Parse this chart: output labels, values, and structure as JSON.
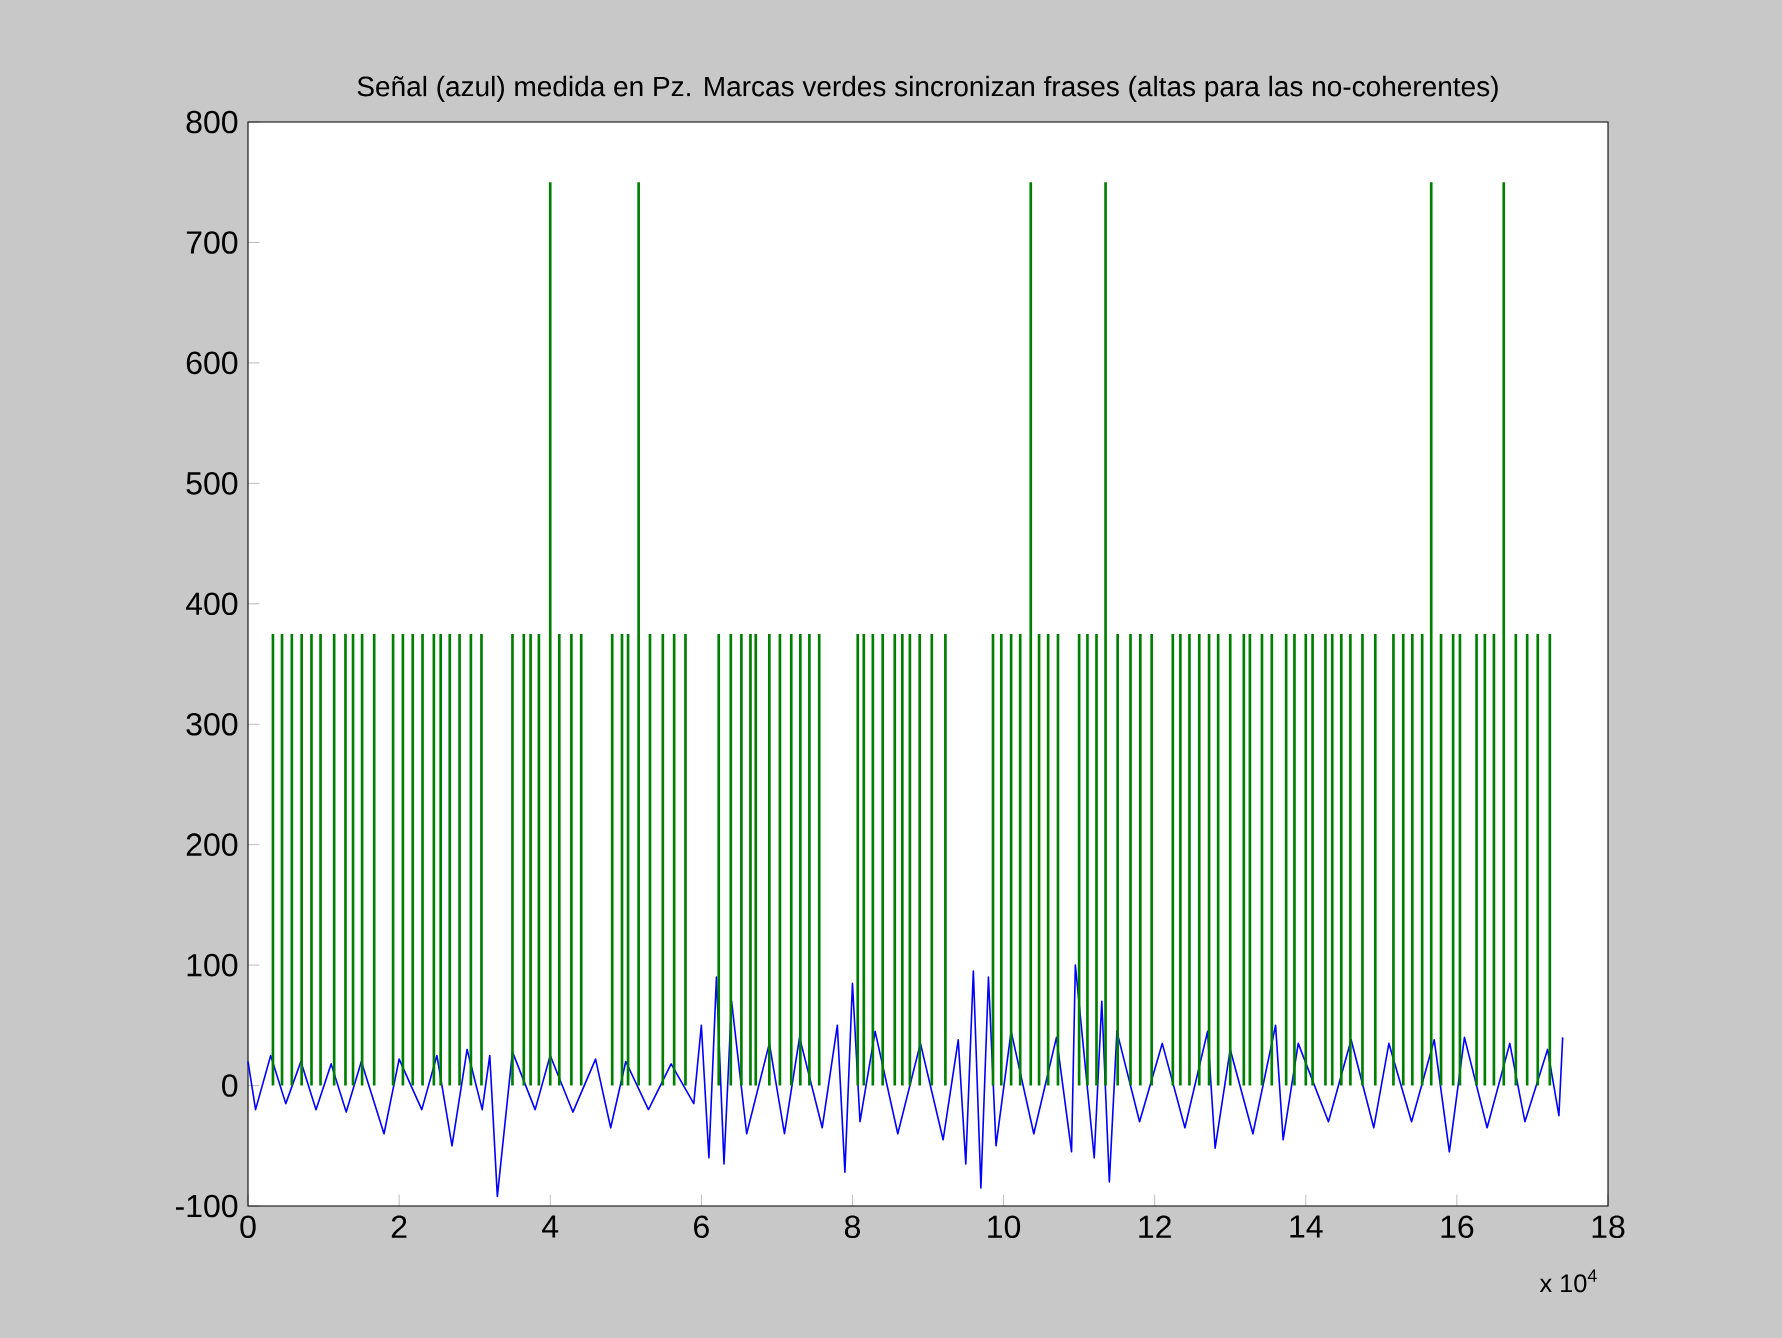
{
  "chart_data": {
    "type": "line",
    "title": "Señal (azul) medida en Pz. Marcas verdes sincronizan frases (altas para las no-coherentes)",
    "xlim": [
      0,
      18
    ],
    "ylim": [
      -100,
      800
    ],
    "xticks": [
      0,
      2,
      4,
      6,
      8,
      10,
      12,
      14,
      16,
      18
    ],
    "yticks": [
      -100,
      0,
      100,
      200,
      300,
      400,
      500,
      600,
      700,
      800
    ],
    "annotations": [
      "x 10$^{4}$"
    ],
    "series": [
      {
        "color": "#0000ff",
        "x": [
          0.0,
          0.1,
          0.3,
          0.5,
          0.7,
          0.9,
          1.1,
          1.3,
          1.5,
          1.8,
          2.0,
          2.3,
          2.5,
          2.7,
          2.9,
          3.1,
          3.2,
          3.3,
          3.5,
          3.8,
          4.0,
          4.3,
          4.6,
          4.8,
          5.0,
          5.3,
          5.6,
          5.9,
          6.0,
          6.1,
          6.2,
          6.3,
          6.4,
          6.6,
          6.9,
          7.1,
          7.3,
          7.6,
          7.8,
          7.9,
          8.0,
          8.1,
          8.3,
          8.6,
          8.9,
          9.2,
          9.4,
          9.5,
          9.6,
          9.7,
          9.8,
          9.9,
          10.1,
          10.4,
          10.7,
          10.9,
          10.95,
          11.2,
          11.3,
          11.4,
          11.5,
          11.8,
          12.1,
          12.4,
          12.7,
          12.8,
          13.0,
          13.3,
          13.6,
          13.7,
          13.9,
          14.3,
          14.6,
          14.9,
          15.1,
          15.4,
          15.7,
          15.9,
          16.1,
          16.4,
          16.7,
          16.9,
          17.2,
          17.35,
          17.4
        ],
        "values": [
          20,
          -20,
          25,
          -15,
          20,
          -20,
          18,
          -22,
          20,
          -40,
          22,
          -20,
          25,
          -50,
          30,
          -20,
          25,
          -92,
          28,
          -20,
          25,
          -22,
          22,
          -35,
          20,
          -20,
          18,
          -15,
          50,
          -60,
          90,
          -65,
          70,
          -40,
          35,
          -40,
          40,
          -35,
          50,
          -72,
          85,
          -30,
          45,
          -40,
          35,
          -45,
          38,
          -65,
          95,
          -85,
          90,
          -50,
          45,
          -40,
          40,
          -55,
          100,
          -60,
          70,
          -80,
          45,
          -30,
          35,
          -35,
          45,
          -52,
          30,
          -40,
          50,
          -45,
          35,
          -30,
          38,
          -35,
          35,
          -30,
          38,
          -55,
          40,
          -35,
          35,
          -30,
          30,
          -25,
          40
        ]
      },
      {
        "type": "bar",
        "color": "#008000",
        "x": [
          0.33,
          0.45,
          0.58,
          0.71,
          0.84,
          0.96,
          1.14,
          1.29,
          1.39,
          1.51,
          1.67,
          1.92,
          2.05,
          2.18,
          2.31,
          2.46,
          2.55,
          2.67,
          2.8,
          2.95,
          3.09,
          3.5,
          3.65,
          3.74,
          3.85,
          4.0,
          4.12,
          4.28,
          4.41,
          4.82,
          4.95,
          5.03,
          5.17,
          5.32,
          5.49,
          5.64,
          5.79,
          6.23,
          6.39,
          6.53,
          6.65,
          6.72,
          6.9,
          7.04,
          7.19,
          7.31,
          7.43,
          7.56,
          8.07,
          8.15,
          8.27,
          8.4,
          8.56,
          8.66,
          8.76,
          8.89,
          9.05,
          9.23,
          9.86,
          9.97,
          10.1,
          10.22,
          10.36,
          10.47,
          10.59,
          10.72,
          11.0,
          11.11,
          11.23,
          11.35,
          11.51,
          11.68,
          11.81,
          11.96,
          12.24,
          12.34,
          12.46,
          12.59,
          12.72,
          12.84,
          13.0,
          13.18,
          13.26,
          13.42,
          13.55,
          13.74,
          13.85,
          14.0,
          14.09,
          14.26,
          14.35,
          14.47,
          14.59,
          14.75,
          14.92,
          15.16,
          15.29,
          15.41,
          15.54,
          15.66,
          15.79,
          15.95,
          16.04,
          16.26,
          16.37,
          16.49,
          16.62,
          16.78,
          16.93,
          17.07,
          17.23
        ],
        "values": [
          375,
          375,
          375,
          375,
          375,
          375,
          375,
          375,
          375,
          375,
          375,
          375,
          375,
          375,
          375,
          375,
          375,
          375,
          375,
          375,
          375,
          375,
          375,
          375,
          375,
          750,
          375,
          375,
          375,
          375,
          375,
          375,
          750,
          375,
          375,
          375,
          375,
          375,
          375,
          375,
          375,
          375,
          375,
          375,
          375,
          375,
          375,
          375,
          375,
          375,
          375,
          375,
          375,
          375,
          375,
          375,
          375,
          375,
          375,
          375,
          375,
          375,
          750,
          375,
          375,
          375,
          375,
          375,
          375,
          750,
          375,
          375,
          375,
          375,
          375,
          375,
          375,
          375,
          375,
          375,
          375,
          375,
          375,
          375,
          375,
          375,
          375,
          375,
          375,
          375,
          375,
          375,
          375,
          375,
          375,
          375,
          375,
          375,
          375,
          750,
          375,
          375,
          375,
          375,
          375,
          375,
          750,
          375,
          375,
          375,
          375
        ]
      }
    ]
  }
}
